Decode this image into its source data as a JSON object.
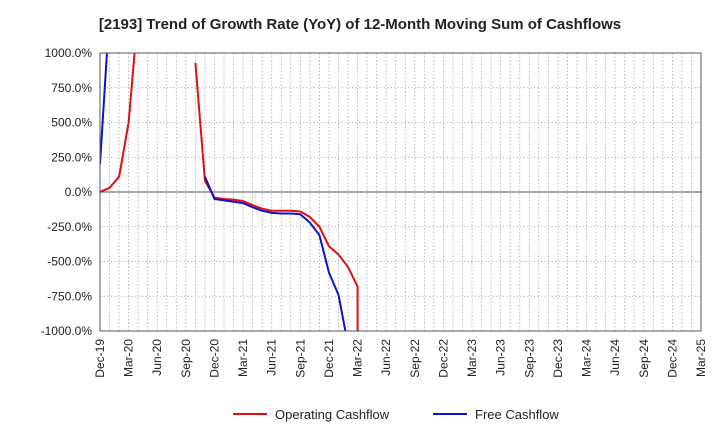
{
  "chart_data": {
    "type": "line",
    "title": "[2193]  Trend of Growth Rate (YoY) of 12-Month Moving Sum of Cashflows",
    "xlabel": "",
    "ylabel": "",
    "ylim": [
      -1000,
      1000
    ],
    "y_ticks": [
      -1000,
      -750,
      -500,
      -250,
      0,
      250,
      500,
      750,
      1000
    ],
    "y_tick_labels": [
      "-1000.0%",
      "-750.0%",
      "-500.0%",
      "-250.0%",
      "0.0%",
      "250.0%",
      "500.0%",
      "750.0%",
      "1000.0%"
    ],
    "x_ticks": [
      "Dec-19",
      "Mar-20",
      "Jun-20",
      "Sep-20",
      "Dec-20",
      "Mar-21",
      "Jun-21",
      "Sep-21",
      "Dec-21",
      "Mar-22",
      "Jun-22",
      "Sep-22",
      "Dec-22",
      "Mar-23",
      "Jun-23",
      "Sep-23",
      "Dec-23",
      "Mar-24",
      "Jun-24",
      "Sep-24",
      "Dec-24",
      "Mar-25"
    ],
    "grid": true,
    "legend_position": "bottom-center",
    "series": [
      {
        "name": "Operating Cashflow",
        "color": "#dd1111",
        "points": [
          [
            "Dec-19",
            0
          ],
          [
            "Jan-20",
            30
          ],
          [
            "Feb-20",
            110
          ],
          [
            "Mar-20",
            500
          ],
          [
            "Apr-20",
            1300
          ],
          null,
          [
            "Oct-20",
            930
          ],
          [
            "Nov-20",
            80
          ],
          [
            "Dec-20",
            -40
          ],
          [
            "Jan-21",
            -50
          ],
          [
            "Feb-21",
            -55
          ],
          [
            "Mar-21",
            -65
          ],
          [
            "Apr-21",
            -95
          ],
          [
            "May-21",
            -120
          ],
          [
            "Jun-21",
            -135
          ],
          [
            "Jul-21",
            -135
          ],
          [
            "Aug-21",
            -135
          ],
          [
            "Sep-21",
            -140
          ],
          [
            "Oct-21",
            -180
          ],
          [
            "Nov-21",
            -250
          ],
          [
            "Dec-21",
            -390
          ],
          [
            "Jan-22",
            -450
          ],
          [
            "Feb-22",
            -540
          ],
          [
            "Mar-22",
            -680
          ],
          [
            "Mar-22",
            -1300
          ]
        ]
      },
      {
        "name": "Free Cashflow",
        "color": "#1111cc",
        "points": [
          [
            "Dec-19",
            200
          ],
          [
            "Jan-20",
            1300
          ],
          null,
          [
            "Nov-20",
            110
          ],
          [
            "Dec-20",
            -50
          ],
          [
            "Jan-21",
            -60
          ],
          [
            "Feb-21",
            -70
          ],
          [
            "Mar-21",
            -80
          ],
          [
            "Apr-21",
            -110
          ],
          [
            "May-21",
            -135
          ],
          [
            "Jun-21",
            -150
          ],
          [
            "Jul-21",
            -155
          ],
          [
            "Aug-21",
            -155
          ],
          [
            "Sep-21",
            -160
          ],
          [
            "Oct-21",
            -220
          ],
          [
            "Nov-21",
            -310
          ],
          [
            "Dec-21",
            -580
          ],
          [
            "Jan-22",
            -740
          ],
          [
            "Feb-22",
            -1100
          ]
        ]
      }
    ]
  },
  "legend": {
    "items": [
      {
        "label": "Operating Cashflow",
        "color": "#dd1111"
      },
      {
        "label": "Free Cashflow",
        "color": "#1111cc"
      }
    ]
  }
}
